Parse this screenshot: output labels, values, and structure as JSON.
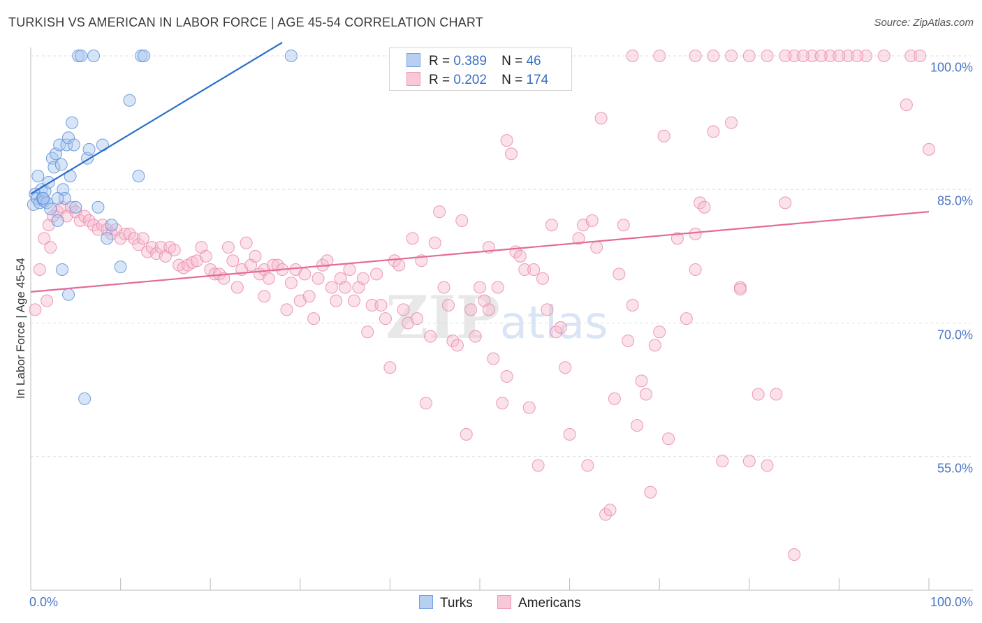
{
  "title": "TURKISH VS AMERICAN IN LABOR FORCE | AGE 45-54 CORRELATION CHART",
  "source": "Source: ZipAtlas.com",
  "watermark": {
    "zip": "ZIP",
    "atlas": "atlas"
  },
  "legend": {
    "turks": {
      "r_label": "R =",
      "r_value": "0.389",
      "n_label": "N =",
      "n_value": "46"
    },
    "americans": {
      "r_label": "R =",
      "r_value": "0.202",
      "n_label": "N =",
      "n_value": "174"
    }
  },
  "bottom_legend": {
    "turks": "Turks",
    "americans": "Americans"
  },
  "colors": {
    "turks_fill": "#a9c6ee",
    "turks_stroke": "#5a8fd8",
    "turks_line": "#2a6fcc",
    "americans_fill": "#f6bccf",
    "americans_stroke": "#e98aab",
    "americans_line": "#e46a98",
    "axis_text": "#4a76c4",
    "grid": "#dddddd"
  },
  "chart_data": {
    "type": "scatter",
    "xlabel": "",
    "ylabel": "In Labor Force | Age 45-54",
    "xlim": [
      0,
      100
    ],
    "ylim": [
      40,
      100
    ],
    "x_tick_labels": [
      {
        "value": 0,
        "label": "0.0%"
      },
      {
        "value": 100,
        "label": "100.0%"
      }
    ],
    "y_tick_labels": [
      {
        "value": 100,
        "label": "100.0%"
      },
      {
        "value": 85,
        "label": "85.0%"
      },
      {
        "value": 70,
        "label": "70.0%"
      },
      {
        "value": 55,
        "label": "55.0%"
      }
    ],
    "grid": true,
    "legend_position": "top-center",
    "series": [
      {
        "name": "Turks",
        "trend": {
          "x0": 0,
          "y0": 84.5,
          "x1": 28,
          "y1": 101.5
        },
        "points": [
          [
            0.3,
            83.3
          ],
          [
            0.5,
            84.5
          ],
          [
            0.7,
            84
          ],
          [
            0.8,
            86.5
          ],
          [
            1,
            83.5
          ],
          [
            1.2,
            85
          ],
          [
            1.3,
            84
          ],
          [
            1.5,
            83.7
          ],
          [
            1.6,
            84.8
          ],
          [
            1.8,
            83.5
          ],
          [
            2,
            85.8
          ],
          [
            2.2,
            82.8
          ],
          [
            2.4,
            88.5
          ],
          [
            2.6,
            87.5
          ],
          [
            2.8,
            89
          ],
          [
            3,
            81.5
          ],
          [
            3.2,
            90
          ],
          [
            3.4,
            87.8
          ],
          [
            3.6,
            85
          ],
          [
            3.8,
            84
          ],
          [
            4,
            90
          ],
          [
            4.2,
            90.8
          ],
          [
            4.4,
            86.5
          ],
          [
            4.6,
            92.5
          ],
          [
            4.8,
            90
          ],
          [
            5,
            83
          ],
          [
            5.3,
            100
          ],
          [
            5.6,
            100
          ],
          [
            6,
            61.5
          ],
          [
            6.3,
            88.5
          ],
          [
            6.5,
            89.5
          ],
          [
            7,
            100
          ],
          [
            7.5,
            83
          ],
          [
            8,
            90
          ],
          [
            8.5,
            79.5
          ],
          [
            9,
            81
          ],
          [
            10,
            76.3
          ],
          [
            11,
            95
          ],
          [
            12,
            86.5
          ],
          [
            12.3,
            100
          ],
          [
            12.6,
            100
          ],
          [
            29,
            100
          ],
          [
            3.5,
            76
          ],
          [
            4.2,
            73.2
          ],
          [
            1.4,
            84
          ],
          [
            3,
            84
          ]
        ]
      },
      {
        "name": "Americans",
        "trend": {
          "x0": 0,
          "y0": 73.5,
          "x1": 100,
          "y1": 82.5
        },
        "points": [
          [
            0.5,
            71.5
          ],
          [
            1,
            76
          ],
          [
            1.5,
            79.5
          ],
          [
            2,
            81
          ],
          [
            2.5,
            82
          ],
          [
            3,
            82.5
          ],
          [
            3.5,
            83
          ],
          [
            4,
            82
          ],
          [
            4.5,
            83
          ],
          [
            5,
            82.5
          ],
          [
            5.5,
            81.5
          ],
          [
            6,
            82
          ],
          [
            6.5,
            81.5
          ],
          [
            7,
            81
          ],
          [
            7.5,
            80.5
          ],
          [
            8,
            81
          ],
          [
            8.5,
            80.5
          ],
          [
            9,
            80
          ],
          [
            9.5,
            80.5
          ],
          [
            10,
            79.5
          ],
          [
            10.5,
            80
          ],
          [
            11,
            80
          ],
          [
            11.5,
            79.5
          ],
          [
            12,
            78.8
          ],
          [
            12.5,
            79.5
          ],
          [
            13,
            78
          ],
          [
            13.5,
            78.5
          ],
          [
            14,
            77.8
          ],
          [
            14.5,
            78.5
          ],
          [
            15,
            77.5
          ],
          [
            15.5,
            78.5
          ],
          [
            16,
            78.2
          ],
          [
            16.5,
            76.5
          ],
          [
            17,
            76.2
          ],
          [
            17.5,
            76.5
          ],
          [
            18,
            76.8
          ],
          [
            18.5,
            77
          ],
          [
            19,
            78.5
          ],
          [
            19.5,
            77.5
          ],
          [
            20,
            76
          ],
          [
            20.5,
            75.5
          ],
          [
            21,
            75.5
          ],
          [
            21.5,
            75
          ],
          [
            22,
            78.5
          ],
          [
            22.5,
            77
          ],
          [
            23,
            74
          ],
          [
            23.5,
            76
          ],
          [
            24,
            79
          ],
          [
            24.5,
            76.5
          ],
          [
            25,
            77.5
          ],
          [
            25.5,
            75.5
          ],
          [
            26,
            76
          ],
          [
            26.5,
            75
          ],
          [
            27,
            76.5
          ],
          [
            27.5,
            76.5
          ],
          [
            28,
            76
          ],
          [
            28.5,
            71.5
          ],
          [
            29,
            74.5
          ],
          [
            29.5,
            76
          ],
          [
            30,
            72.5
          ],
          [
            30.5,
            75.5
          ],
          [
            31,
            73
          ],
          [
            31.5,
            70.5
          ],
          [
            32,
            75
          ],
          [
            32.5,
            76.5
          ],
          [
            33,
            77
          ],
          [
            33.5,
            74
          ],
          [
            34,
            72.5
          ],
          [
            34.5,
            75
          ],
          [
            35,
            74
          ],
          [
            35.5,
            76
          ],
          [
            36,
            72.5
          ],
          [
            36.5,
            74
          ],
          [
            37,
            75
          ],
          [
            37.5,
            69
          ],
          [
            38,
            72
          ],
          [
            38.5,
            75.5
          ],
          [
            39,
            72
          ],
          [
            39.5,
            70.5
          ],
          [
            40,
            65
          ],
          [
            40.5,
            77
          ],
          [
            41,
            76.5
          ],
          [
            41.5,
            71.5
          ],
          [
            42,
            70
          ],
          [
            42.5,
            79.5
          ],
          [
            43,
            70.5
          ],
          [
            43.5,
            77
          ],
          [
            44,
            61
          ],
          [
            44.5,
            68.5
          ],
          [
            45,
            79
          ],
          [
            45.5,
            82.5
          ],
          [
            46,
            74
          ],
          [
            46.5,
            72
          ],
          [
            47,
            68
          ],
          [
            47.5,
            67.5
          ],
          [
            48,
            81.5
          ],
          [
            48.5,
            57.5
          ],
          [
            49,
            71.5
          ],
          [
            49.5,
            68.5
          ],
          [
            50,
            74
          ],
          [
            50.5,
            72.5
          ],
          [
            51,
            78.5
          ],
          [
            51.5,
            66
          ],
          [
            52,
            74
          ],
          [
            52.5,
            61
          ],
          [
            53,
            64
          ],
          [
            53.5,
            89
          ],
          [
            54,
            78
          ],
          [
            54.5,
            77.5
          ],
          [
            55,
            76
          ],
          [
            55.5,
            60.5
          ],
          [
            56,
            76
          ],
          [
            56.5,
            54
          ],
          [
            57,
            75
          ],
          [
            57.5,
            71.5
          ],
          [
            58,
            81
          ],
          [
            58.5,
            69
          ],
          [
            59,
            69.5
          ],
          [
            59.5,
            65
          ],
          [
            60,
            57.5
          ],
          [
            61,
            79.5
          ],
          [
            61.5,
            81
          ],
          [
            62,
            54
          ],
          [
            62.5,
            81.5
          ],
          [
            63,
            78.5
          ],
          [
            63.5,
            93
          ],
          [
            64,
            48.5
          ],
          [
            64.5,
            49
          ],
          [
            65,
            61.5
          ],
          [
            65.5,
            75.5
          ],
          [
            66,
            81
          ],
          [
            66.5,
            68
          ],
          [
            67,
            72
          ],
          [
            67.5,
            58.5
          ],
          [
            68,
            63.5
          ],
          [
            68.5,
            62
          ],
          [
            69,
            51
          ],
          [
            69.5,
            67.5
          ],
          [
            70,
            69
          ],
          [
            70.5,
            91
          ],
          [
            71,
            57
          ],
          [
            72,
            79.5
          ],
          [
            73,
            70.5
          ],
          [
            74,
            80
          ],
          [
            74.5,
            83.5
          ],
          [
            75,
            83
          ],
          [
            76,
            91.5
          ],
          [
            77,
            54.5
          ],
          [
            78,
            92.5
          ],
          [
            79,
            74
          ],
          [
            80,
            54.5
          ],
          [
            81,
            62
          ],
          [
            82,
            54
          ],
          [
            84,
            83.5
          ],
          [
            85,
            44
          ],
          [
            1.8,
            72.5
          ],
          [
            2.2,
            78.5
          ],
          [
            26,
            73
          ],
          [
            51,
            71.5
          ],
          [
            53,
            90.5
          ],
          [
            74,
            76
          ],
          [
            79,
            73.8
          ],
          [
            83,
            62
          ],
          [
            97.5,
            94.5
          ],
          [
            100,
            89.5
          ],
          [
            98,
            100
          ],
          [
            95,
            100
          ],
          [
            93,
            100
          ],
          [
            91,
            100
          ],
          [
            89,
            100
          ],
          [
            87,
            100
          ],
          [
            85,
            100
          ],
          [
            84,
            100
          ],
          [
            82,
            100
          ],
          [
            80,
            100
          ],
          [
            78,
            100
          ],
          [
            76,
            100
          ],
          [
            74,
            100
          ],
          [
            70,
            100
          ],
          [
            67,
            100
          ],
          [
            92,
            100
          ],
          [
            90,
            100
          ],
          [
            88,
            100
          ],
          [
            86,
            100
          ],
          [
            99,
            100
          ]
        ]
      }
    ]
  }
}
